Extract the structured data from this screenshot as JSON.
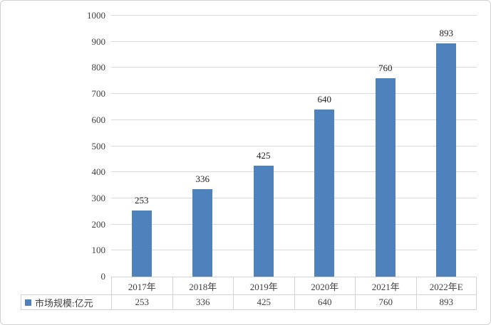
{
  "chart_data": {
    "type": "bar",
    "title": "",
    "xlabel": "",
    "ylabel": "",
    "categories": [
      "2017年",
      "2018年",
      "2019年",
      "2020年",
      "2021年",
      "2022年E"
    ],
    "series": [
      {
        "name": "市场规模:亿元",
        "values": [
          253,
          336,
          425,
          640,
          760,
          893
        ]
      }
    ],
    "ylim": [
      0,
      1000
    ],
    "yticks": [
      0,
      100,
      200,
      300,
      400,
      500,
      600,
      700,
      800,
      900,
      1000
    ],
    "grid": "horizontal",
    "legend_position": "bottom-left-table-row",
    "data_labels_visible": true,
    "data_table_visible": true,
    "colors": {
      "bar": "#4f81bd",
      "gridline": "#d9d9d9",
      "table_border": "#d4d4d4",
      "frame_border": "#d2d2d2",
      "axis_text": "#404040",
      "label_text": "#1f1f1f",
      "background": "#ffffff"
    }
  }
}
